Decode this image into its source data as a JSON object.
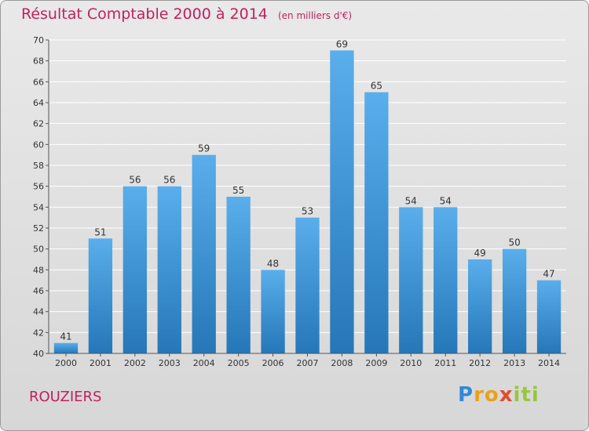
{
  "header": {
    "title": "Résultat Comptable 2000 à 2014",
    "unit": "(en milliers d'€)"
  },
  "footer": {
    "place": "ROUZIERS",
    "logo_parts": [
      "P",
      "ro",
      "x",
      "iti"
    ]
  },
  "colors": {
    "title": "#c41f5f",
    "bar_top": "#5aaeeb",
    "bar_bottom": "#2577b8",
    "grid": "#ffffff",
    "axis": "#555555"
  },
  "chart_data": {
    "type": "bar",
    "title": "Résultat Comptable 2000 à 2014",
    "subtitle": "(en milliers d'€)",
    "xlabel": "",
    "ylabel": "",
    "categories": [
      "2000",
      "2001",
      "2002",
      "2003",
      "2004",
      "2005",
      "2006",
      "2007",
      "2008",
      "2009",
      "2010",
      "2011",
      "2012",
      "2013",
      "2014"
    ],
    "values": [
      41,
      51,
      56,
      56,
      59,
      55,
      48,
      53,
      69,
      65,
      54,
      54,
      49,
      50,
      47
    ],
    "ylim": [
      40,
      70
    ],
    "yticks": [
      40,
      42,
      44,
      46,
      48,
      50,
      52,
      54,
      56,
      58,
      60,
      62,
      64,
      66,
      68,
      70
    ],
    "grid": true,
    "data_labels": true
  }
}
